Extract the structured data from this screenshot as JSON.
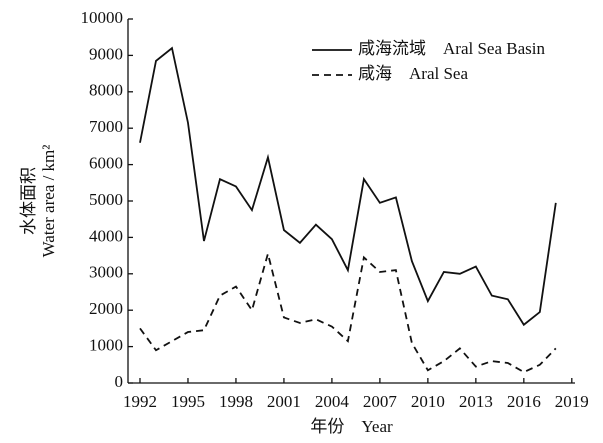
{
  "chart_data": {
    "type": "line",
    "x_label": "年份　Year",
    "y_label": [
      "水体面积",
      "Water area / km²"
    ],
    "x": [
      1992,
      1993,
      1994,
      1995,
      1996,
      1997,
      1998,
      1999,
      2000,
      2001,
      2002,
      2003,
      2004,
      2005,
      2006,
      2007,
      2008,
      2009,
      2010,
      2011,
      2012,
      2013,
      2014,
      2015,
      2016,
      2017,
      2018
    ],
    "series": [
      {
        "name": "咸海流域　Aral Sea Basin",
        "color": "#111111",
        "dash": "solid",
        "values": [
          6600,
          8850,
          9200,
          7150,
          3900,
          5600,
          5400,
          4750,
          6200,
          4200,
          3850,
          4350,
          3950,
          3100,
          5600,
          4950,
          5100,
          3350,
          2250,
          3050,
          3000,
          3200,
          2400,
          2300,
          1600,
          1950,
          4950
        ]
      },
      {
        "name": "咸海　Aral Sea",
        "color": "#111111",
        "dash": "dashed",
        "values": [
          1500,
          900,
          1150,
          1400,
          1450,
          2400,
          2650,
          2000,
          3550,
          1800,
          1650,
          1750,
          1550,
          1150,
          3450,
          3050,
          3100,
          1100,
          350,
          600,
          950,
          450,
          600,
          550,
          300,
          500,
          950
        ]
      }
    ],
    "xlim": [
      1991.25,
      2019.2
    ],
    "xticks": [
      1992,
      1995,
      1998,
      2001,
      2004,
      2007,
      2010,
      2013,
      2016,
      2019
    ],
    "ylim": [
      0,
      10000
    ],
    "yticks": [
      0,
      1000,
      2000,
      3000,
      4000,
      5000,
      6000,
      7000,
      8000,
      9000,
      10000
    ],
    "legend": "upper right",
    "grid": false
  }
}
